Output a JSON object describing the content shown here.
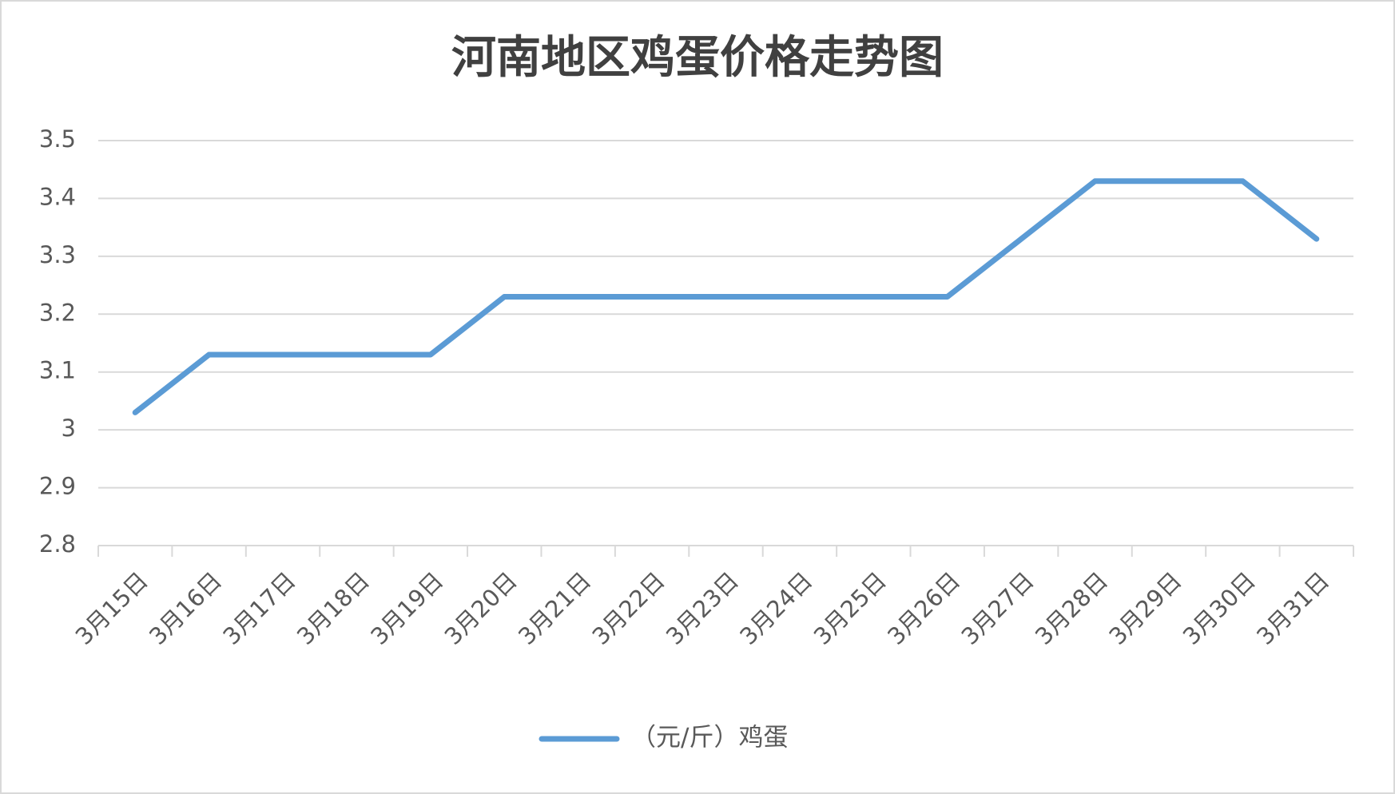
{
  "chart_data": {
    "type": "line",
    "title": "河南地区鸡蛋价格走势图",
    "categories": [
      "3月15日",
      "3月16日",
      "3月17日",
      "3月18日",
      "3月19日",
      "3月20日",
      "3月21日",
      "3月22日",
      "3月23日",
      "3月24日",
      "3月25日",
      "3月26日",
      "3月27日",
      "3月28日",
      "3月29日",
      "3月30日",
      "3月31日"
    ],
    "series": [
      {
        "name": "（元/斤）鸡蛋",
        "color": "#5b9bd5",
        "values": [
          3.03,
          3.13,
          3.13,
          3.13,
          3.13,
          3.23,
          3.23,
          3.23,
          3.23,
          3.23,
          3.23,
          3.23,
          3.33,
          3.43,
          3.43,
          3.43,
          3.33
        ]
      }
    ],
    "ylim": [
      2.8,
      3.5
    ],
    "yticks": [
      2.8,
      2.9,
      3,
      3.1,
      3.2,
      3.3,
      3.4,
      3.5
    ],
    "grid": true,
    "legend": "bottom"
  }
}
